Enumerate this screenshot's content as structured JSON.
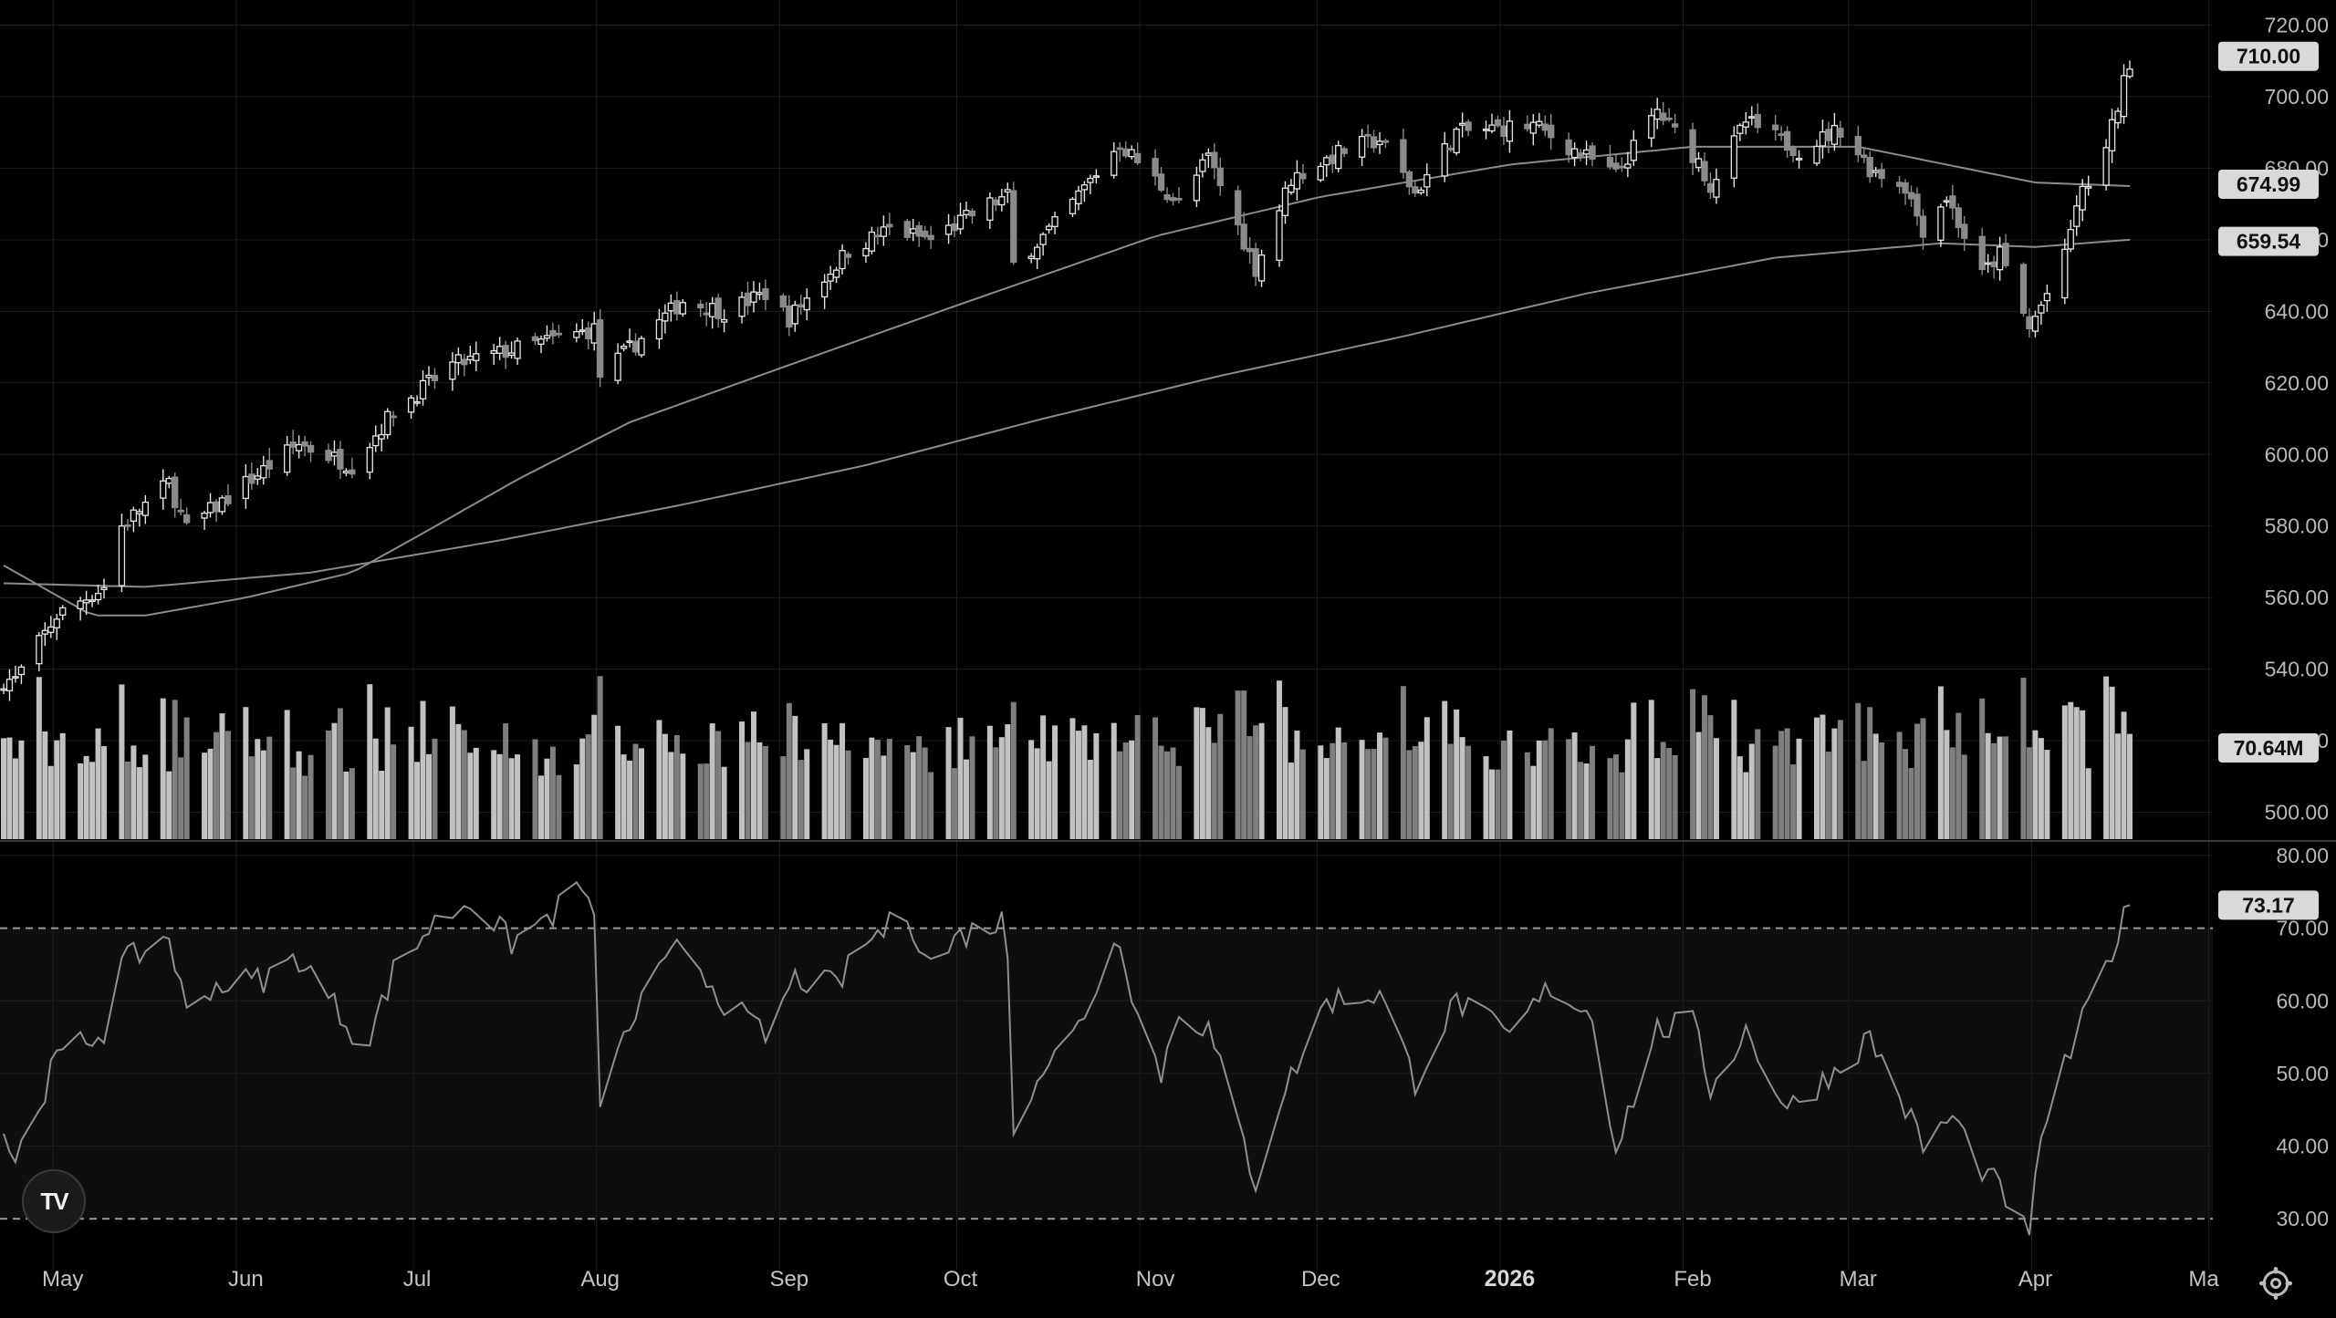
{
  "chart_data": {
    "type": "candlestick",
    "title": "",
    "panes": [
      "price",
      "rsi"
    ],
    "price_axis": {
      "ticks": [
        "720.00",
        "700.00",
        "680.00",
        "660.00",
        "640.00",
        "620.00",
        "600.00",
        "580.00",
        "560.00",
        "540.00",
        "520.00",
        "500.00"
      ],
      "ylim": [
        492,
        727
      ]
    },
    "rsi_axis": {
      "ticks": [
        "80.00",
        "70.00",
        "60.00",
        "50.00",
        "40.00",
        "30.00"
      ],
      "ylim": [
        23,
        82
      ],
      "bands": [
        30,
        70
      ]
    },
    "x_axis": {
      "labels": [
        "May",
        "Jun",
        "Jul",
        "Aug",
        "Sep",
        "Oct",
        "Nov",
        "Dec",
        "2026",
        "Feb",
        "Mar",
        "Apr",
        "Ma"
      ],
      "bold_label": "2026"
    },
    "price_anchors": [
      [
        "2025-04-24",
        537
      ],
      [
        "2025-05-01",
        555
      ],
      [
        "2025-05-09",
        563
      ],
      [
        "2025-05-12",
        580
      ],
      [
        "2025-05-20",
        592
      ],
      [
        "2025-05-23",
        579
      ],
      [
        "2025-06-02",
        592
      ],
      [
        "2025-06-11",
        603
      ],
      [
        "2025-06-20",
        597
      ],
      [
        "2025-06-27",
        612
      ],
      [
        "2025-07-07",
        625
      ],
      [
        "2025-07-31",
        635
      ],
      [
        "2025-08-01",
        622
      ],
      [
        "2025-08-15",
        643
      ],
      [
        "2025-08-22",
        640
      ],
      [
        "2025-08-29",
        645
      ],
      [
        "2025-09-02",
        638
      ],
      [
        "2025-09-12",
        657
      ],
      [
        "2025-09-19",
        663
      ],
      [
        "2025-09-26",
        660
      ],
      [
        "2025-10-06",
        670
      ],
      [
        "2025-10-09",
        672
      ],
      [
        "2025-10-10",
        653
      ],
      [
        "2025-10-17",
        664
      ],
      [
        "2025-10-28",
        687
      ],
      [
        "2025-11-04",
        675
      ],
      [
        "2025-11-07",
        670
      ],
      [
        "2025-11-12",
        683
      ],
      [
        "2025-11-20",
        652
      ],
      [
        "2025-11-26",
        677
      ],
      [
        "2025-12-05",
        685
      ],
      [
        "2025-12-11",
        688
      ],
      [
        "2025-12-17",
        673
      ],
      [
        "2025-12-24",
        690
      ],
      [
        "2026-01-06",
        692
      ],
      [
        "2026-01-20",
        678
      ],
      [
        "2026-01-27",
        696
      ],
      [
        "2026-02-03",
        682
      ],
      [
        "2026-02-05",
        675
      ],
      [
        "2026-02-11",
        693
      ],
      [
        "2026-02-20",
        685
      ],
      [
        "2026-02-27",
        691
      ],
      [
        "2026-03-04",
        680
      ],
      [
        "2026-03-10",
        675
      ],
      [
        "2026-03-13",
        663
      ],
      [
        "2026-03-17",
        672
      ],
      [
        "2026-03-23",
        650
      ],
      [
        "2026-03-26",
        656
      ],
      [
        "2026-03-31",
        635
      ],
      [
        "2026-04-06",
        655
      ],
      [
        "2026-04-08",
        670
      ],
      [
        "2026-04-13",
        685
      ],
      [
        "2026-04-17",
        710
      ]
    ],
    "sma_50": {
      "label": "674.99",
      "points": [
        [
          "2025-04-22",
          569
        ],
        [
          "2025-05-07",
          555
        ],
        [
          "2025-05-16",
          555
        ],
        [
          "2025-06-02",
          560
        ],
        [
          "2025-06-20",
          567
        ],
        [
          "2025-07-02",
          578
        ],
        [
          "2025-07-18",
          593
        ],
        [
          "2025-08-06",
          609
        ],
        [
          "2025-09-02",
          625
        ],
        [
          "2025-10-01",
          642
        ],
        [
          "2025-11-03",
          661
        ],
        [
          "2025-12-01",
          672
        ],
        [
          "2026-01-02",
          681
        ],
        [
          "2026-02-02",
          686
        ],
        [
          "2026-03-02",
          686
        ],
        [
          "2026-04-01",
          676
        ],
        [
          "2026-04-17",
          675
        ]
      ]
    },
    "sma_200": {
      "label": "659.54",
      "points": [
        [
          "2025-04-22",
          564
        ],
        [
          "2025-05-16",
          563
        ],
        [
          "2025-06-13",
          567
        ],
        [
          "2025-07-15",
          576
        ],
        [
          "2025-08-15",
          586
        ],
        [
          "2025-09-15",
          597
        ],
        [
          "2025-10-15",
          610
        ],
        [
          "2025-11-14",
          622
        ],
        [
          "2025-12-15",
          633
        ],
        [
          "2026-01-15",
          645
        ],
        [
          "2026-02-16",
          655
        ],
        [
          "2026-03-16",
          659
        ],
        [
          "2026-04-01",
          658
        ],
        [
          "2026-04-17",
          660
        ]
      ]
    },
    "volume": {
      "last_label": "70.64M",
      "typical_range_m": [
        40,
        120
      ]
    },
    "rsi_anchors": [
      [
        "2025-04-22",
        42
      ],
      [
        "2025-04-24",
        38
      ],
      [
        "2025-05-01",
        52
      ],
      [
        "2025-05-09",
        56
      ],
      [
        "2025-05-12",
        65
      ],
      [
        "2025-05-20",
        69
      ],
      [
        "2025-05-23",
        58
      ],
      [
        "2025-05-27",
        62
      ],
      [
        "2025-06-05",
        63
      ],
      [
        "2025-06-11",
        66
      ],
      [
        "2025-06-20",
        56
      ],
      [
        "2025-06-23",
        55
      ],
      [
        "2025-06-27",
        64
      ],
      [
        "2025-07-03",
        70
      ],
      [
        "2025-07-10",
        74
      ],
      [
        "2025-07-17",
        68
      ],
      [
        "2025-07-24",
        72
      ],
      [
        "2025-07-29",
        76
      ],
      [
        "2025-07-31",
        70
      ],
      [
        "2025-08-01",
        47
      ],
      [
        "2025-08-08",
        60
      ],
      [
        "2025-08-15",
        68
      ],
      [
        "2025-08-22",
        60
      ],
      [
        "2025-08-29",
        55
      ],
      [
        "2025-09-03",
        63
      ],
      [
        "2025-09-10",
        62
      ],
      [
        "2025-09-15",
        68
      ],
      [
        "2025-09-22",
        72
      ],
      [
        "2025-09-26",
        65
      ],
      [
        "2025-10-01",
        69
      ],
      [
        "2025-10-08",
        71
      ],
      [
        "2025-10-09",
        66
      ],
      [
        "2025-10-10",
        43
      ],
      [
        "2025-10-14",
        50
      ],
      [
        "2025-10-20",
        55
      ],
      [
        "2025-10-28",
        69
      ],
      [
        "2025-10-31",
        58
      ],
      [
        "2025-11-04",
        50
      ],
      [
        "2025-11-07",
        59
      ],
      [
        "2025-11-12",
        56
      ],
      [
        "2025-11-20",
        35
      ],
      [
        "2025-11-24",
        46
      ],
      [
        "2025-12-02",
        60
      ],
      [
        "2025-12-11",
        61
      ],
      [
        "2025-12-17",
        49
      ],
      [
        "2025-12-24",
        60
      ],
      [
        "2026-01-02",
        55
      ],
      [
        "2026-01-09",
        62
      ],
      [
        "2026-01-16",
        58
      ],
      [
        "2026-01-20",
        40
      ],
      [
        "2026-01-27",
        56
      ],
      [
        "2026-02-02",
        57
      ],
      [
        "2026-02-05",
        48
      ],
      [
        "2026-02-11",
        56
      ],
      [
        "2026-02-18",
        45
      ],
      [
        "2026-02-27",
        51
      ],
      [
        "2026-03-04",
        55
      ],
      [
        "2026-03-09",
        47
      ],
      [
        "2026-03-13",
        40
      ],
      [
        "2026-03-18",
        44
      ],
      [
        "2026-03-23",
        37
      ],
      [
        "2026-03-27",
        33
      ],
      [
        "2026-03-31",
        27
      ],
      [
        "2026-04-02",
        42
      ],
      [
        "2026-04-08",
        55
      ],
      [
        "2026-04-13",
        65
      ],
      [
        "2026-04-17",
        73.17
      ]
    ],
    "rsi_last_label": "73.17",
    "grid": true,
    "legend": "none"
  },
  "icons": {
    "logo": "tradingview-logo-icon",
    "settings": "settings-gear-icon"
  },
  "logo_text": "TV",
  "colors": {
    "background": "#000000",
    "grid": "#1e1e1e",
    "candle_up": "#e6e6e6",
    "candle_down": "#8a8a8a",
    "volume": "#b3b3b3",
    "sma": "#8c8c8c",
    "rsi": "#8f8f8f",
    "price_tag": "#d9d9d9"
  }
}
